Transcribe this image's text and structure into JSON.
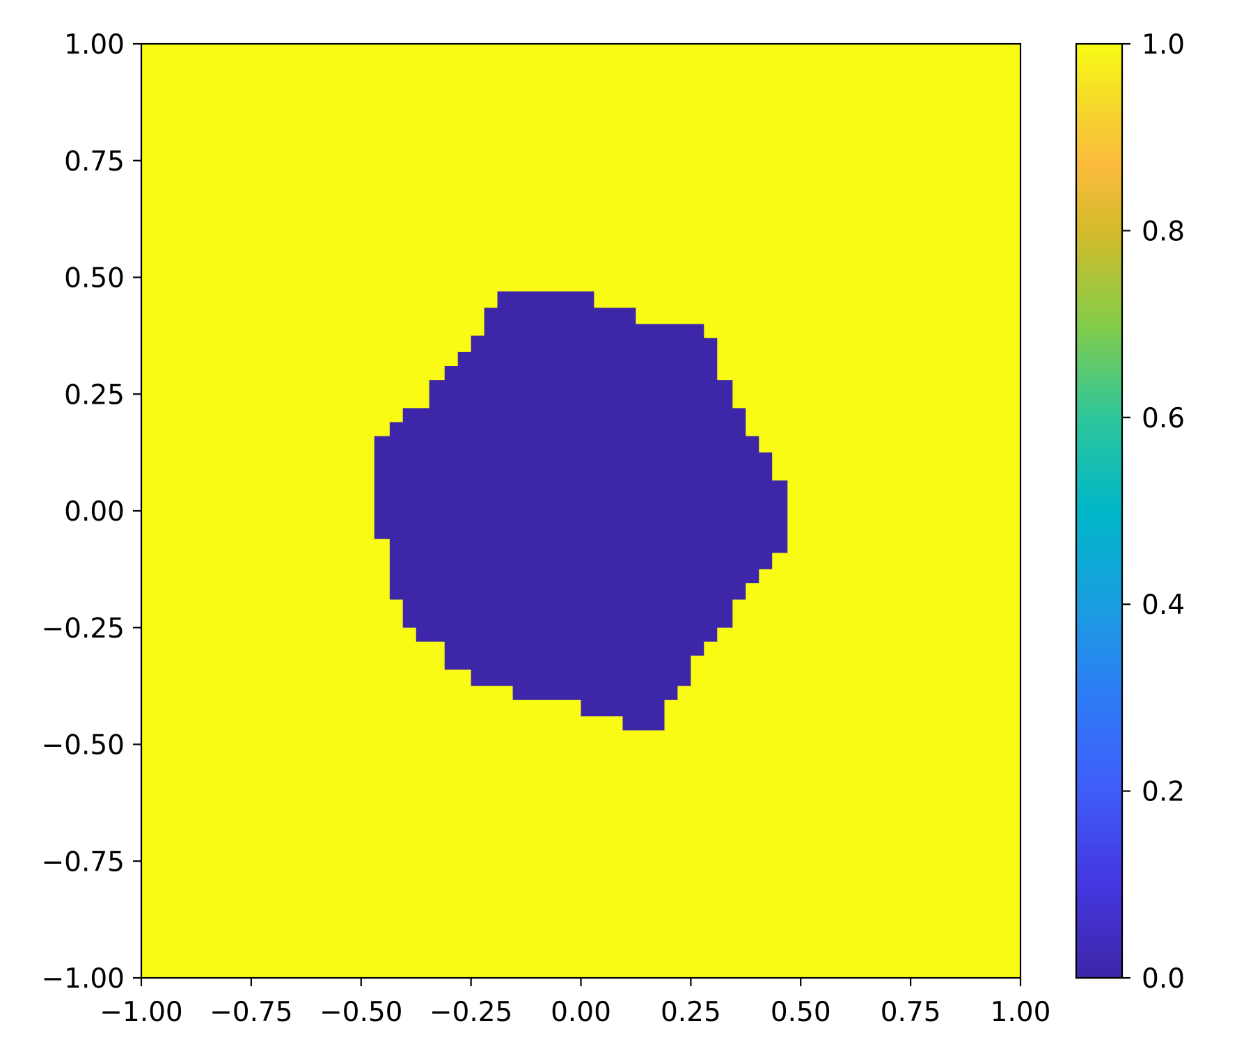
{
  "chart_data": {
    "type": "heatmap",
    "title": "",
    "xlabel": "",
    "ylabel": "",
    "xlim": [
      -1.0,
      1.0
    ],
    "ylim": [
      -1.0,
      1.0
    ],
    "x_ticks": [
      -1.0,
      -0.75,
      -0.5,
      -0.25,
      0.0,
      0.25,
      0.5,
      0.75,
      1.0
    ],
    "x_tick_labels": [
      "−1.00",
      "−0.75",
      "−0.50",
      "−0.25",
      "0.00",
      "0.25",
      "0.50",
      "0.75",
      "1.00"
    ],
    "y_ticks": [
      1.0,
      0.75,
      0.5,
      0.25,
      0.0,
      -0.25,
      -0.5,
      -0.75,
      -1.0
    ],
    "y_tick_labels": [
      "1.00",
      "0.75",
      "0.50",
      "0.25",
      "0.00",
      "−0.25",
      "−0.50",
      "−0.75",
      "−1.00"
    ],
    "background_value": 1.0,
    "region_value": 0.0,
    "region_boundary": [
      [
        -0.19,
        0.47
      ],
      [
        0.03,
        0.47
      ],
      [
        0.03,
        0.435
      ],
      [
        0.125,
        0.435
      ],
      [
        0.125,
        0.4
      ],
      [
        0.28,
        0.4
      ],
      [
        0.28,
        0.37
      ],
      [
        0.31,
        0.37
      ],
      [
        0.31,
        0.28
      ],
      [
        0.345,
        0.28
      ],
      [
        0.345,
        0.22
      ],
      [
        0.375,
        0.22
      ],
      [
        0.375,
        0.16
      ],
      [
        0.405,
        0.16
      ],
      [
        0.405,
        0.125
      ],
      [
        0.435,
        0.125
      ],
      [
        0.435,
        0.065
      ],
      [
        0.47,
        0.065
      ],
      [
        0.47,
        -0.09
      ],
      [
        0.435,
        -0.09
      ],
      [
        0.435,
        -0.125
      ],
      [
        0.405,
        -0.125
      ],
      [
        0.405,
        -0.155
      ],
      [
        0.375,
        -0.155
      ],
      [
        0.375,
        -0.19
      ],
      [
        0.345,
        -0.19
      ],
      [
        0.345,
        -0.25
      ],
      [
        0.31,
        -0.25
      ],
      [
        0.31,
        -0.28
      ],
      [
        0.28,
        -0.28
      ],
      [
        0.28,
        -0.31
      ],
      [
        0.25,
        -0.31
      ],
      [
        0.25,
        -0.375
      ],
      [
        0.22,
        -0.375
      ],
      [
        0.22,
        -0.405
      ],
      [
        0.19,
        -0.405
      ],
      [
        0.19,
        -0.47
      ],
      [
        0.095,
        -0.47
      ],
      [
        0.095,
        -0.44
      ],
      [
        0.0,
        -0.44
      ],
      [
        0.0,
        -0.405
      ],
      [
        -0.155,
        -0.405
      ],
      [
        -0.155,
        -0.375
      ],
      [
        -0.25,
        -0.375
      ],
      [
        -0.25,
        -0.34
      ],
      [
        -0.31,
        -0.34
      ],
      [
        -0.31,
        -0.28
      ],
      [
        -0.375,
        -0.28
      ],
      [
        -0.375,
        -0.25
      ],
      [
        -0.405,
        -0.25
      ],
      [
        -0.405,
        -0.19
      ],
      [
        -0.435,
        -0.19
      ],
      [
        -0.435,
        -0.06
      ],
      [
        -0.47,
        -0.06
      ],
      [
        -0.47,
        0.16
      ],
      [
        -0.435,
        0.16
      ],
      [
        -0.435,
        0.19
      ],
      [
        -0.405,
        0.19
      ],
      [
        -0.405,
        0.22
      ],
      [
        -0.345,
        0.22
      ],
      [
        -0.345,
        0.28
      ],
      [
        -0.31,
        0.28
      ],
      [
        -0.31,
        0.31
      ],
      [
        -0.28,
        0.31
      ],
      [
        -0.28,
        0.34
      ],
      [
        -0.25,
        0.34
      ],
      [
        -0.25,
        0.375
      ],
      [
        -0.22,
        0.375
      ],
      [
        -0.22,
        0.435
      ],
      [
        -0.19,
        0.435
      ]
    ],
    "colorbar": {
      "range": [
        0.0,
        1.0
      ],
      "ticks": [
        0.0,
        0.2,
        0.4,
        0.6,
        0.8,
        1.0
      ],
      "tick_labels": [
        "0.0",
        "0.2",
        "0.4",
        "0.6",
        "0.8",
        "1.0"
      ],
      "colormap": "parula",
      "color_stops": [
        {
          "value": 0.0,
          "color": "#3e26a8"
        },
        {
          "value": 0.1,
          "color": "#4437e0"
        },
        {
          "value": 0.2,
          "color": "#3f5cf9"
        },
        {
          "value": 0.3,
          "color": "#2e7bf6"
        },
        {
          "value": 0.4,
          "color": "#1a9ee0"
        },
        {
          "value": 0.5,
          "color": "#00b7c7"
        },
        {
          "value": 0.6,
          "color": "#2ec69b"
        },
        {
          "value": 0.7,
          "color": "#85cc49"
        },
        {
          "value": 0.8,
          "color": "#d4bb2b"
        },
        {
          "value": 0.87,
          "color": "#fbbb3d"
        },
        {
          "value": 0.93,
          "color": "#f5d62c"
        },
        {
          "value": 1.0,
          "color": "#f9fb15"
        }
      ]
    },
    "grid": false
  }
}
